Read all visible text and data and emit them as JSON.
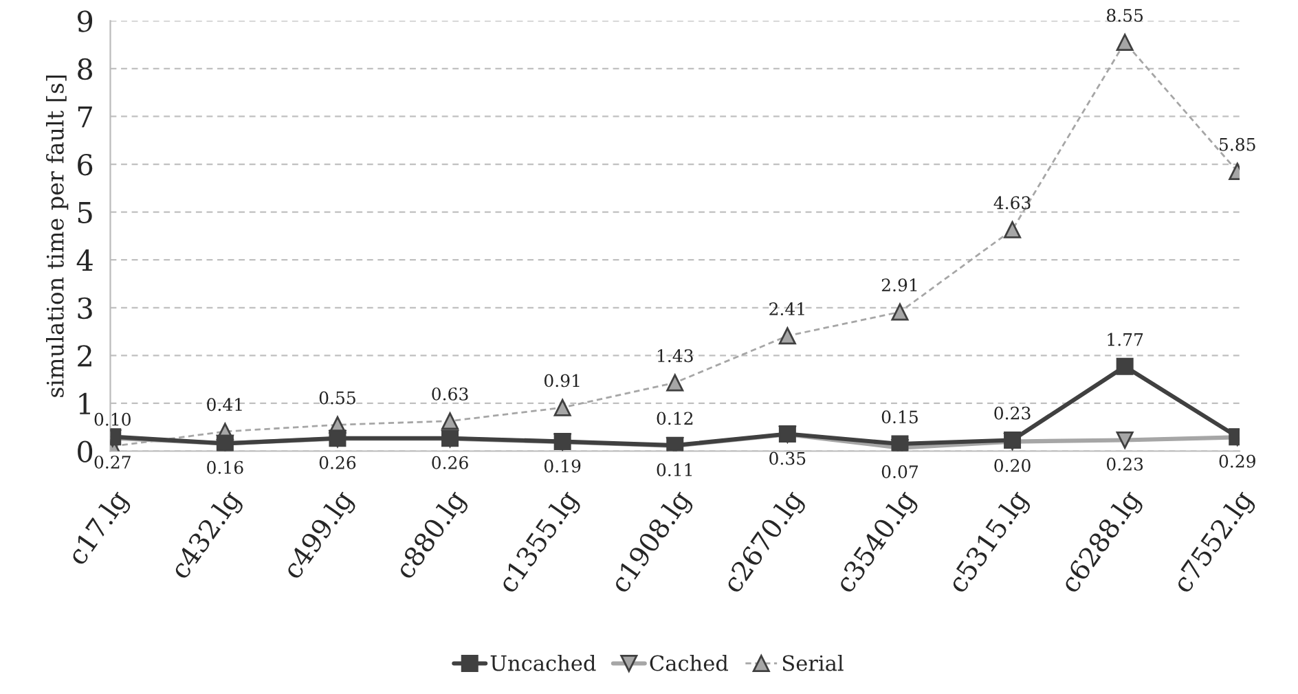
{
  "chart_data": {
    "type": "line",
    "ylabel": "simulation time per fault [s]",
    "categories": [
      "c17.lg",
      "c432.lg",
      "c499.lg",
      "c880.lg",
      "c1355.lg",
      "c1908.lg",
      "c2670.lg",
      "c3540.lg",
      "c5315.lg",
      "c6288.lg",
      "c7552.lg"
    ],
    "ylim": [
      0,
      9
    ],
    "yticks": [
      0,
      1,
      2,
      3,
      4,
      5,
      6,
      7,
      8,
      9
    ],
    "grid": "y",
    "legend": "bottom",
    "series": [
      {
        "name": "Uncached",
        "color": "#404040",
        "marker": "square",
        "line_style": "solid",
        "values": [
          0.3,
          0.16,
          0.27,
          0.27,
          0.2,
          0.12,
          0.36,
          0.15,
          0.23,
          1.77,
          0.3
        ],
        "value_labels": [
          null,
          null,
          null,
          null,
          null,
          "0.12",
          null,
          "0.15",
          "0.23",
          "1.77",
          null
        ]
      },
      {
        "name": "Cached",
        "color": "#a6a6a6",
        "marker": "triangle_down",
        "line_style": "solid",
        "values": [
          0.27,
          0.16,
          0.26,
          0.26,
          0.19,
          0.11,
          0.35,
          0.07,
          0.2,
          0.23,
          0.29
        ],
        "value_labels": [
          "0.27",
          "0.16",
          "0.26",
          "0.26",
          "0.19",
          "0.11",
          "0.35",
          "0.07",
          "0.20",
          "0.23",
          "0.29"
        ]
      },
      {
        "name": "Serial",
        "color": "#a6a6a6",
        "marker": "triangle",
        "line_style": "dashed",
        "values": [
          0.1,
          0.41,
          0.55,
          0.63,
          0.91,
          1.43,
          2.41,
          2.91,
          4.63,
          8.55,
          5.85
        ],
        "value_labels": [
          "0.10",
          "0.41",
          "0.55",
          "0.63",
          "0.91",
          "1.43",
          "2.41",
          "2.91",
          "4.63",
          "8.55",
          "5.85"
        ]
      }
    ]
  }
}
